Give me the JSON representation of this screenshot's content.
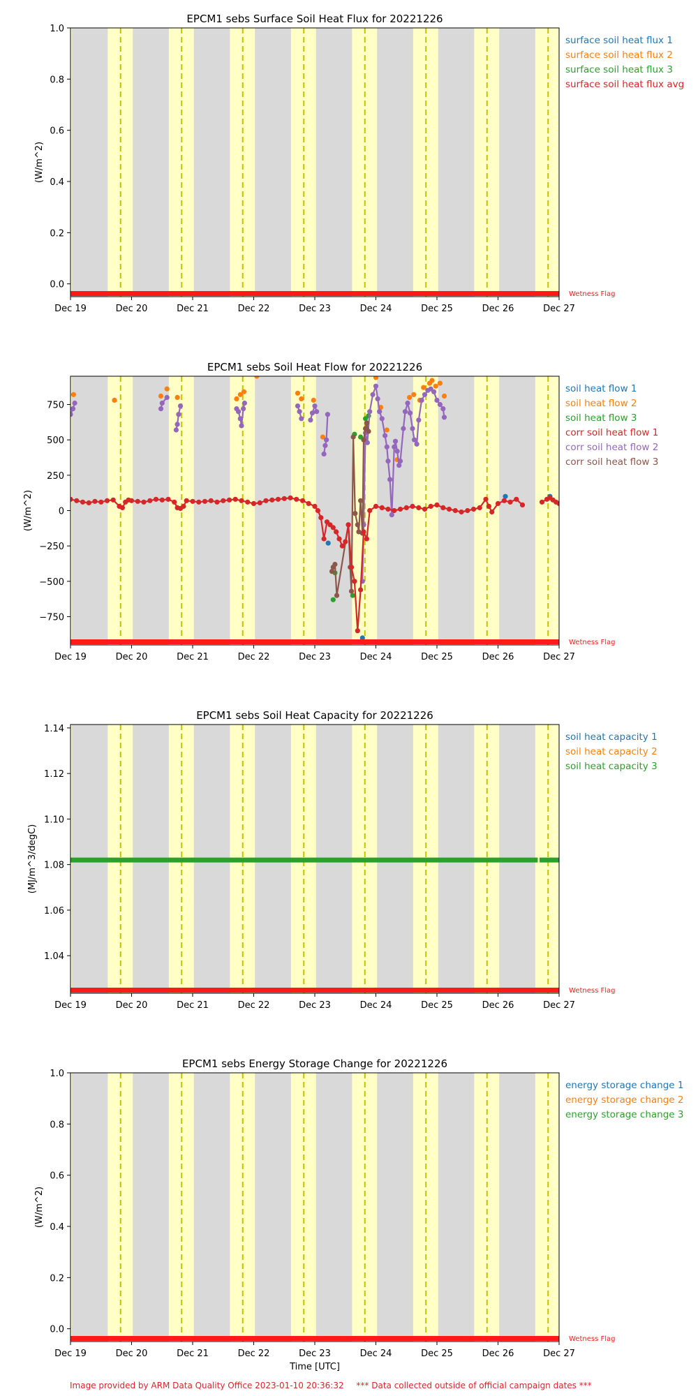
{
  "colors": {
    "c1": "#1f77b4",
    "c2": "#ff7f0e",
    "c3": "#2ca02c",
    "c4": "#d62728",
    "c5": "#9467bd",
    "c6": "#8c564b",
    "night": "#d9d9d9",
    "day": "#ffffc6",
    "noon": "#c2c200",
    "wet": "#ff1a1a"
  },
  "footer": {
    "credit": "Image provided by ARM Data Quality Office 2023-01-10 20:36:32",
    "note": "*** Data collected outside of official campaign dates ***"
  },
  "chart_data": [
    {
      "type": "line",
      "title": "EPCM1 sebs Surface Soil Heat Flux for 20221226",
      "ylabel": "(W/m^2)",
      "xlabel": "",
      "ylim": [
        -0.05,
        1.0
      ],
      "yticks": [
        "0.0",
        "0.2",
        "0.4",
        "0.6",
        "0.8",
        "1.0"
      ],
      "ytick_values": [
        0.0,
        0.2,
        0.4,
        0.6,
        0.8,
        1.0
      ],
      "xticks": [
        "Dec 19",
        "Dec 20",
        "Dec 21",
        "Dec 22",
        "Dec 23",
        "Dec 24",
        "Dec 25",
        "Dec 26",
        "Dec 27"
      ],
      "flag_label": "Wetness Flag",
      "legend": [
        "surface soil heat flux 1",
        "surface soil heat flux 2",
        "surface soil heat flux 3",
        "surface soil heat flux avg"
      ],
      "legend_colors": [
        "#1f77b4",
        "#ff7f0e",
        "#2ca02c",
        "#d62728"
      ],
      "series": []
    },
    {
      "type": "line",
      "title": "EPCM1 sebs Soil Heat Flow for 20221226",
      "ylabel": "(W/m^2)",
      "xlabel": "",
      "ylim": [
        -950,
        950
      ],
      "yticks": [
        "−750",
        "−500",
        "−250",
        "0",
        "250",
        "500",
        "750"
      ],
      "ytick_values": [
        -750,
        -500,
        -250,
        0,
        250,
        500,
        750
      ],
      "xticks": [
        "Dec 19",
        "Dec 20",
        "Dec 21",
        "Dec 22",
        "Dec 23",
        "Dec 24",
        "Dec 25",
        "Dec 26",
        "Dec 27"
      ],
      "flag_label": "Wetness Flag",
      "legend": [
        "soil heat flow 1",
        "soil heat flow 2",
        "soil heat flow 3",
        "corr soil heat flow 1",
        "corr soil heat flow 2",
        "corr soil heat flow 3"
      ],
      "legend_colors": [
        "#1f77b4",
        "#ff7f0e",
        "#2ca02c",
        "#d62728",
        "#9467bd",
        "#8c564b"
      ],
      "series": [
        {
          "color": "#ff7f0e",
          "line": false,
          "x": [
            19.05,
            19.72,
            20.48,
            20.58,
            20.75,
            21.72,
            21.78,
            21.84,
            22.05,
            22.72,
            22.78,
            22.98,
            23.13,
            24.0,
            24.08,
            24.18,
            24.35,
            24.55,
            24.62,
            24.72,
            24.78,
            24.88,
            24.92,
            24.98,
            25.05,
            25.12
          ],
          "y": [
            820,
            780,
            810,
            860,
            800,
            790,
            820,
            840,
            950,
            830,
            790,
            780,
            520,
            940,
            730,
            570,
            360,
            800,
            820,
            780,
            870,
            900,
            920,
            880,
            900,
            810
          ]
        },
        {
          "color": "#2ca02c",
          "line": false,
          "x": [
            23.3,
            23.33,
            23.62,
            23.65,
            23.75,
            23.83,
            23.88
          ],
          "y": [
            -630,
            -440,
            -600,
            540,
            520,
            650,
            670
          ]
        },
        {
          "color": "#1f77b4",
          "line": false,
          "x": [
            23.22,
            23.78,
            26.12,
            26.85
          ],
          "y": [
            -230,
            -900,
            100,
            100
          ]
        },
        {
          "color": "#9467bd",
          "line": true,
          "x": [
            19.0,
            19.04,
            19.07
          ],
          "y": [
            680,
            720,
            760
          ]
        },
        {
          "color": "#9467bd",
          "line": true,
          "x": [
            20.48,
            20.5,
            20.58
          ],
          "y": [
            720,
            760,
            800
          ]
        },
        {
          "color": "#9467bd",
          "line": true,
          "x": [
            20.73,
            20.75,
            20.77,
            20.8
          ],
          "y": [
            570,
            610,
            680,
            740
          ]
        },
        {
          "color": "#9467bd",
          "line": true,
          "x": [
            21.72,
            21.75,
            21.78,
            21.8,
            21.83,
            21.85
          ],
          "y": [
            720,
            700,
            650,
            600,
            720,
            760
          ]
        },
        {
          "color": "#9467bd",
          "line": true,
          "x": [
            22.72,
            22.75,
            22.78
          ],
          "y": [
            740,
            700,
            650
          ]
        },
        {
          "color": "#9467bd",
          "line": true,
          "x": [
            22.93,
            22.96,
            23.0,
            23.03
          ],
          "y": [
            640,
            690,
            740,
            700
          ]
        },
        {
          "color": "#9467bd",
          "line": true,
          "x": [
            23.15,
            23.17,
            23.19,
            23.21
          ],
          "y": [
            400,
            460,
            500,
            680
          ]
        },
        {
          "color": "#9467bd",
          "line": true,
          "x": [
            23.78,
            23.8,
            23.83,
            23.86,
            23.9,
            23.95,
            24.0,
            24.03,
            24.06,
            24.1,
            24.15,
            24.18,
            24.2,
            24.23,
            24.26,
            24.3,
            24.32,
            24.35,
            24.38,
            24.4,
            24.45,
            24.48,
            24.52,
            24.56,
            24.6,
            24.63,
            24.67,
            24.7,
            24.75,
            24.8,
            24.85,
            24.9,
            24.95,
            25.0,
            25.05,
            25.1,
            25.12
          ],
          "y": [
            -500,
            -100,
            550,
            480,
            700,
            820,
            880,
            790,
            700,
            650,
            530,
            450,
            350,
            220,
            -30,
            450,
            490,
            420,
            320,
            350,
            580,
            700,
            760,
            690,
            580,
            500,
            470,
            640,
            780,
            820,
            850,
            860,
            840,
            780,
            750,
            720,
            660
          ]
        },
        {
          "color": "#8c564b",
          "line": true,
          "x": [
            23.28,
            23.3,
            23.33,
            23.36,
            23.55,
            23.58,
            23.6,
            23.63,
            23.66,
            23.7,
            23.72,
            23.75,
            23.78,
            23.8,
            23.83,
            23.85,
            23.88
          ],
          "y": [
            -430,
            -400,
            -380,
            -600,
            -100,
            -400,
            -570,
            520,
            -20,
            -100,
            -150,
            70,
            -160,
            500,
            580,
            620,
            560
          ]
        },
        {
          "color": "#d62728",
          "line": true,
          "x": [
            19.0,
            19.1,
            19.2,
            19.3,
            19.4,
            19.5,
            19.6,
            19.7,
            19.8,
            19.85,
            19.9,
            19.95,
            20.0,
            20.1,
            20.2,
            20.3,
            20.4,
            20.5,
            20.6,
            20.7,
            20.75,
            20.8,
            20.85,
            20.9,
            21.0,
            21.1,
            21.2,
            21.3,
            21.4,
            21.5,
            21.6,
            21.7,
            21.8,
            21.9,
            22.0,
            22.1,
            22.2,
            22.3,
            22.4,
            22.5,
            22.6,
            22.7,
            22.8,
            22.9,
            23.0,
            23.05,
            23.1,
            23.15,
            23.2,
            23.25,
            23.3,
            23.35,
            23.4,
            23.45,
            23.5,
            23.55,
            23.6,
            23.65,
            23.7,
            23.75,
            23.8,
            23.85,
            23.9,
            24.0,
            24.1,
            24.2,
            24.3,
            24.4,
            24.5,
            24.6,
            24.7,
            24.8,
            24.9,
            25.0,
            25.1,
            25.2,
            25.3,
            25.4,
            25.5,
            25.6,
            25.7,
            25.8,
            25.85,
            25.9,
            26.0,
            26.1,
            26.2,
            26.3,
            26.4
          ],
          "y": [
            80,
            70,
            60,
            55,
            65,
            60,
            70,
            75,
            30,
            20,
            60,
            75,
            70,
            65,
            60,
            70,
            80,
            75,
            80,
            60,
            20,
            15,
            30,
            70,
            65,
            60,
            65,
            70,
            60,
            70,
            75,
            80,
            70,
            60,
            50,
            55,
            70,
            75,
            80,
            85,
            90,
            80,
            70,
            50,
            30,
            0,
            -50,
            -200,
            -80,
            -100,
            -120,
            -150,
            -200,
            -250,
            -220,
            -100,
            -400,
            -500,
            -850,
            -560,
            -150,
            -200,
            0,
            30,
            20,
            10,
            0,
            10,
            20,
            30,
            20,
            10,
            30,
            40,
            20,
            10,
            0,
            -10,
            0,
            10,
            20,
            80,
            30,
            -10,
            50,
            70,
            60,
            80,
            40
          ]
        },
        {
          "color": "#d62728",
          "line": true,
          "x": [
            26.72,
            26.8,
            26.85,
            26.9,
            26.95,
            27.0
          ],
          "y": [
            60,
            80,
            90,
            75,
            60,
            50
          ]
        }
      ]
    },
    {
      "type": "line",
      "title": "EPCM1 sebs Soil Heat Capacity for 20221226",
      "ylabel": "(MJ/m^3/degC)",
      "xlabel": "",
      "ylim": [
        1.0235,
        1.1415
      ],
      "yticks": [
        "1.04",
        "1.06",
        "1.08",
        "1.10",
        "1.12",
        "1.14"
      ],
      "ytick_values": [
        1.04,
        1.06,
        1.08,
        1.1,
        1.12,
        1.14
      ],
      "xticks": [
        "Dec 19",
        "Dec 20",
        "Dec 21",
        "Dec 22",
        "Dec 23",
        "Dec 24",
        "Dec 25",
        "Dec 26",
        "Dec 27"
      ],
      "flag_label": "Wetness Flag",
      "legend": [
        "soil heat capacity 1",
        "soil heat capacity 2",
        "soil heat capacity 3"
      ],
      "legend_colors": [
        "#1f77b4",
        "#ff7f0e",
        "#2ca02c"
      ],
      "series": [
        {
          "color": "#2ca02c",
          "line": true,
          "width": 7,
          "x": [
            19.0,
            26.65
          ],
          "y": [
            1.082,
            1.082
          ]
        },
        {
          "color": "#2ca02c",
          "line": true,
          "width": 7,
          "x": [
            26.68,
            27.0
          ],
          "y": [
            1.082,
            1.082
          ]
        }
      ]
    },
    {
      "type": "line",
      "title": "EPCM1 sebs Energy Storage Change for 20221226",
      "ylabel": "(W/m^2)",
      "xlabel": "Time [UTC]",
      "ylim": [
        -0.05,
        1.0
      ],
      "yticks": [
        "0.0",
        "0.2",
        "0.4",
        "0.6",
        "0.8",
        "1.0"
      ],
      "ytick_values": [
        0.0,
        0.2,
        0.4,
        0.6,
        0.8,
        1.0
      ],
      "xticks": [
        "Dec 19",
        "Dec 20",
        "Dec 21",
        "Dec 22",
        "Dec 23",
        "Dec 24",
        "Dec 25",
        "Dec 26",
        "Dec 27"
      ],
      "flag_label": "Wetness Flag",
      "legend": [
        "energy storage change 1",
        "energy storage change 2",
        "energy storage change 3"
      ],
      "legend_colors": [
        "#1f77b4",
        "#ff7f0e",
        "#2ca02c"
      ],
      "series": []
    }
  ]
}
